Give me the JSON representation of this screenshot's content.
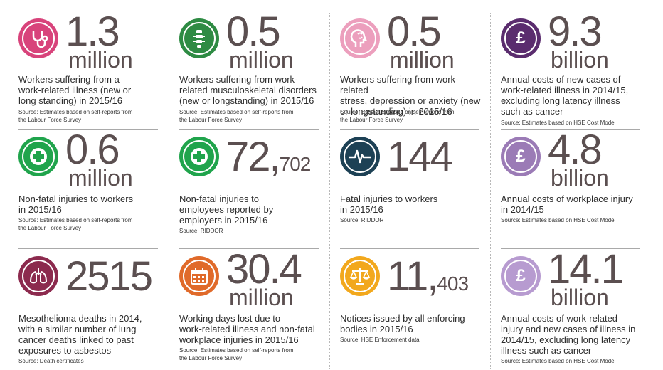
{
  "colors": {
    "pink": "#d8437b",
    "green": "#2e8b43",
    "lightpink": "#ec9fbd",
    "purple": "#5a2c6e",
    "brightgreen": "#20a44c",
    "navy": "#1d4155",
    "lavender": "#9b7bb6",
    "maroon": "#8c2a4e",
    "orange": "#e06a2a",
    "gold": "#f2a81d",
    "lilac": "#b79bd0",
    "number": "#5b4f50"
  },
  "cells": [
    {
      "icon": "stethoscope-icon",
      "number": "1.3",
      "unit": "million",
      "desc": [
        "Workers suffering from a",
        "work-related illness (new or",
        "long standing) in 2015/16"
      ],
      "source": [
        "Source: Estimates based on self-reports from",
        "the Labour Force Survey"
      ]
    },
    {
      "icon": "spine-icon",
      "number": "0.5",
      "unit": "million",
      "desc": [
        "Workers suffering from work-",
        "related musculoskeletal disorders",
        "(new or longstanding) in 2015/16"
      ],
      "source": [
        "Source: Estimates based on self-reports from",
        "the Labour Force Survey"
      ]
    },
    {
      "icon": "head-icon",
      "number": "0.5",
      "unit": "million",
      "desc": [
        "Workers suffering from work-related",
        "stress, depression or anxiety (new",
        "or longstanding) in 2015/16"
      ],
      "source": [
        "Source: Estimates based on self-reports from",
        "the Labour Force Survey"
      ]
    },
    {
      "icon": "pound-icon",
      "number": "9.3",
      "unit": "billion",
      "desc": [
        "Annual costs of new cases of",
        "work-related illness in 2014/15,",
        "excluding long latency illness",
        "such as cancer"
      ],
      "source": [
        "Source: Estimates based on HSE Cost Model"
      ]
    },
    {
      "icon": "first-aid-cross-icon",
      "number": "0.6",
      "unit": "million",
      "desc": [
        "Non-fatal injuries to workers",
        "in 2015/16"
      ],
      "source": [
        "Source: Estimates based on self-reports from",
        "the Labour Force Survey"
      ]
    },
    {
      "icon": "first-aid-cross-icon",
      "number": "72,",
      "suffix": "702",
      "desc": [
        "Non-fatal injuries to",
        "employees reported by",
        "employers in 2015/16"
      ],
      "source": [
        "Source: RIDDOR"
      ]
    },
    {
      "icon": "heartbeat-icon",
      "number": "144",
      "desc": [
        "Fatal injuries to workers",
        "in 2015/16"
      ],
      "source": [
        "Source: RIDDOR"
      ]
    },
    {
      "icon": "pound-icon",
      "number": "4.8",
      "unit": "billion",
      "desc": [
        "Annual costs of workplace injury",
        "in 2014/15"
      ],
      "source": [
        "Source: Estimates based on HSE Cost Model"
      ]
    },
    {
      "icon": "lungs-icon",
      "number": "2515",
      "desc": [
        "Mesothelioma deaths in 2014,",
        "with a similar number of lung",
        "cancer deaths linked to past",
        "exposures to asbestos"
      ],
      "source": [
        "Source: Death certificates"
      ]
    },
    {
      "icon": "calendar-icon",
      "number": "30.4",
      "unit": "million",
      "desc": [
        "Working days lost due to",
        "work-related illness and non-fatal",
        "workplace injuries in 2015/16"
      ],
      "source": [
        "Source: Estimates based on self-reports from",
        "the Labour Force Survey"
      ]
    },
    {
      "icon": "scales-icon",
      "number": "11,",
      "suffix": "403",
      "desc": [
        "Notices issued by all enforcing",
        "bodies in 2015/16"
      ],
      "source": [
        "Source: HSE Enforcement data"
      ]
    },
    {
      "icon": "pound-icon",
      "number": "14.1",
      "unit": "billion",
      "desc": [
        "Annual costs of work-related",
        "injury and new cases of illness in",
        "2014/15, excluding long latency",
        "illness such as cancer"
      ],
      "source": [
        "Source: Estimates based on HSE Cost Model"
      ]
    }
  ]
}
